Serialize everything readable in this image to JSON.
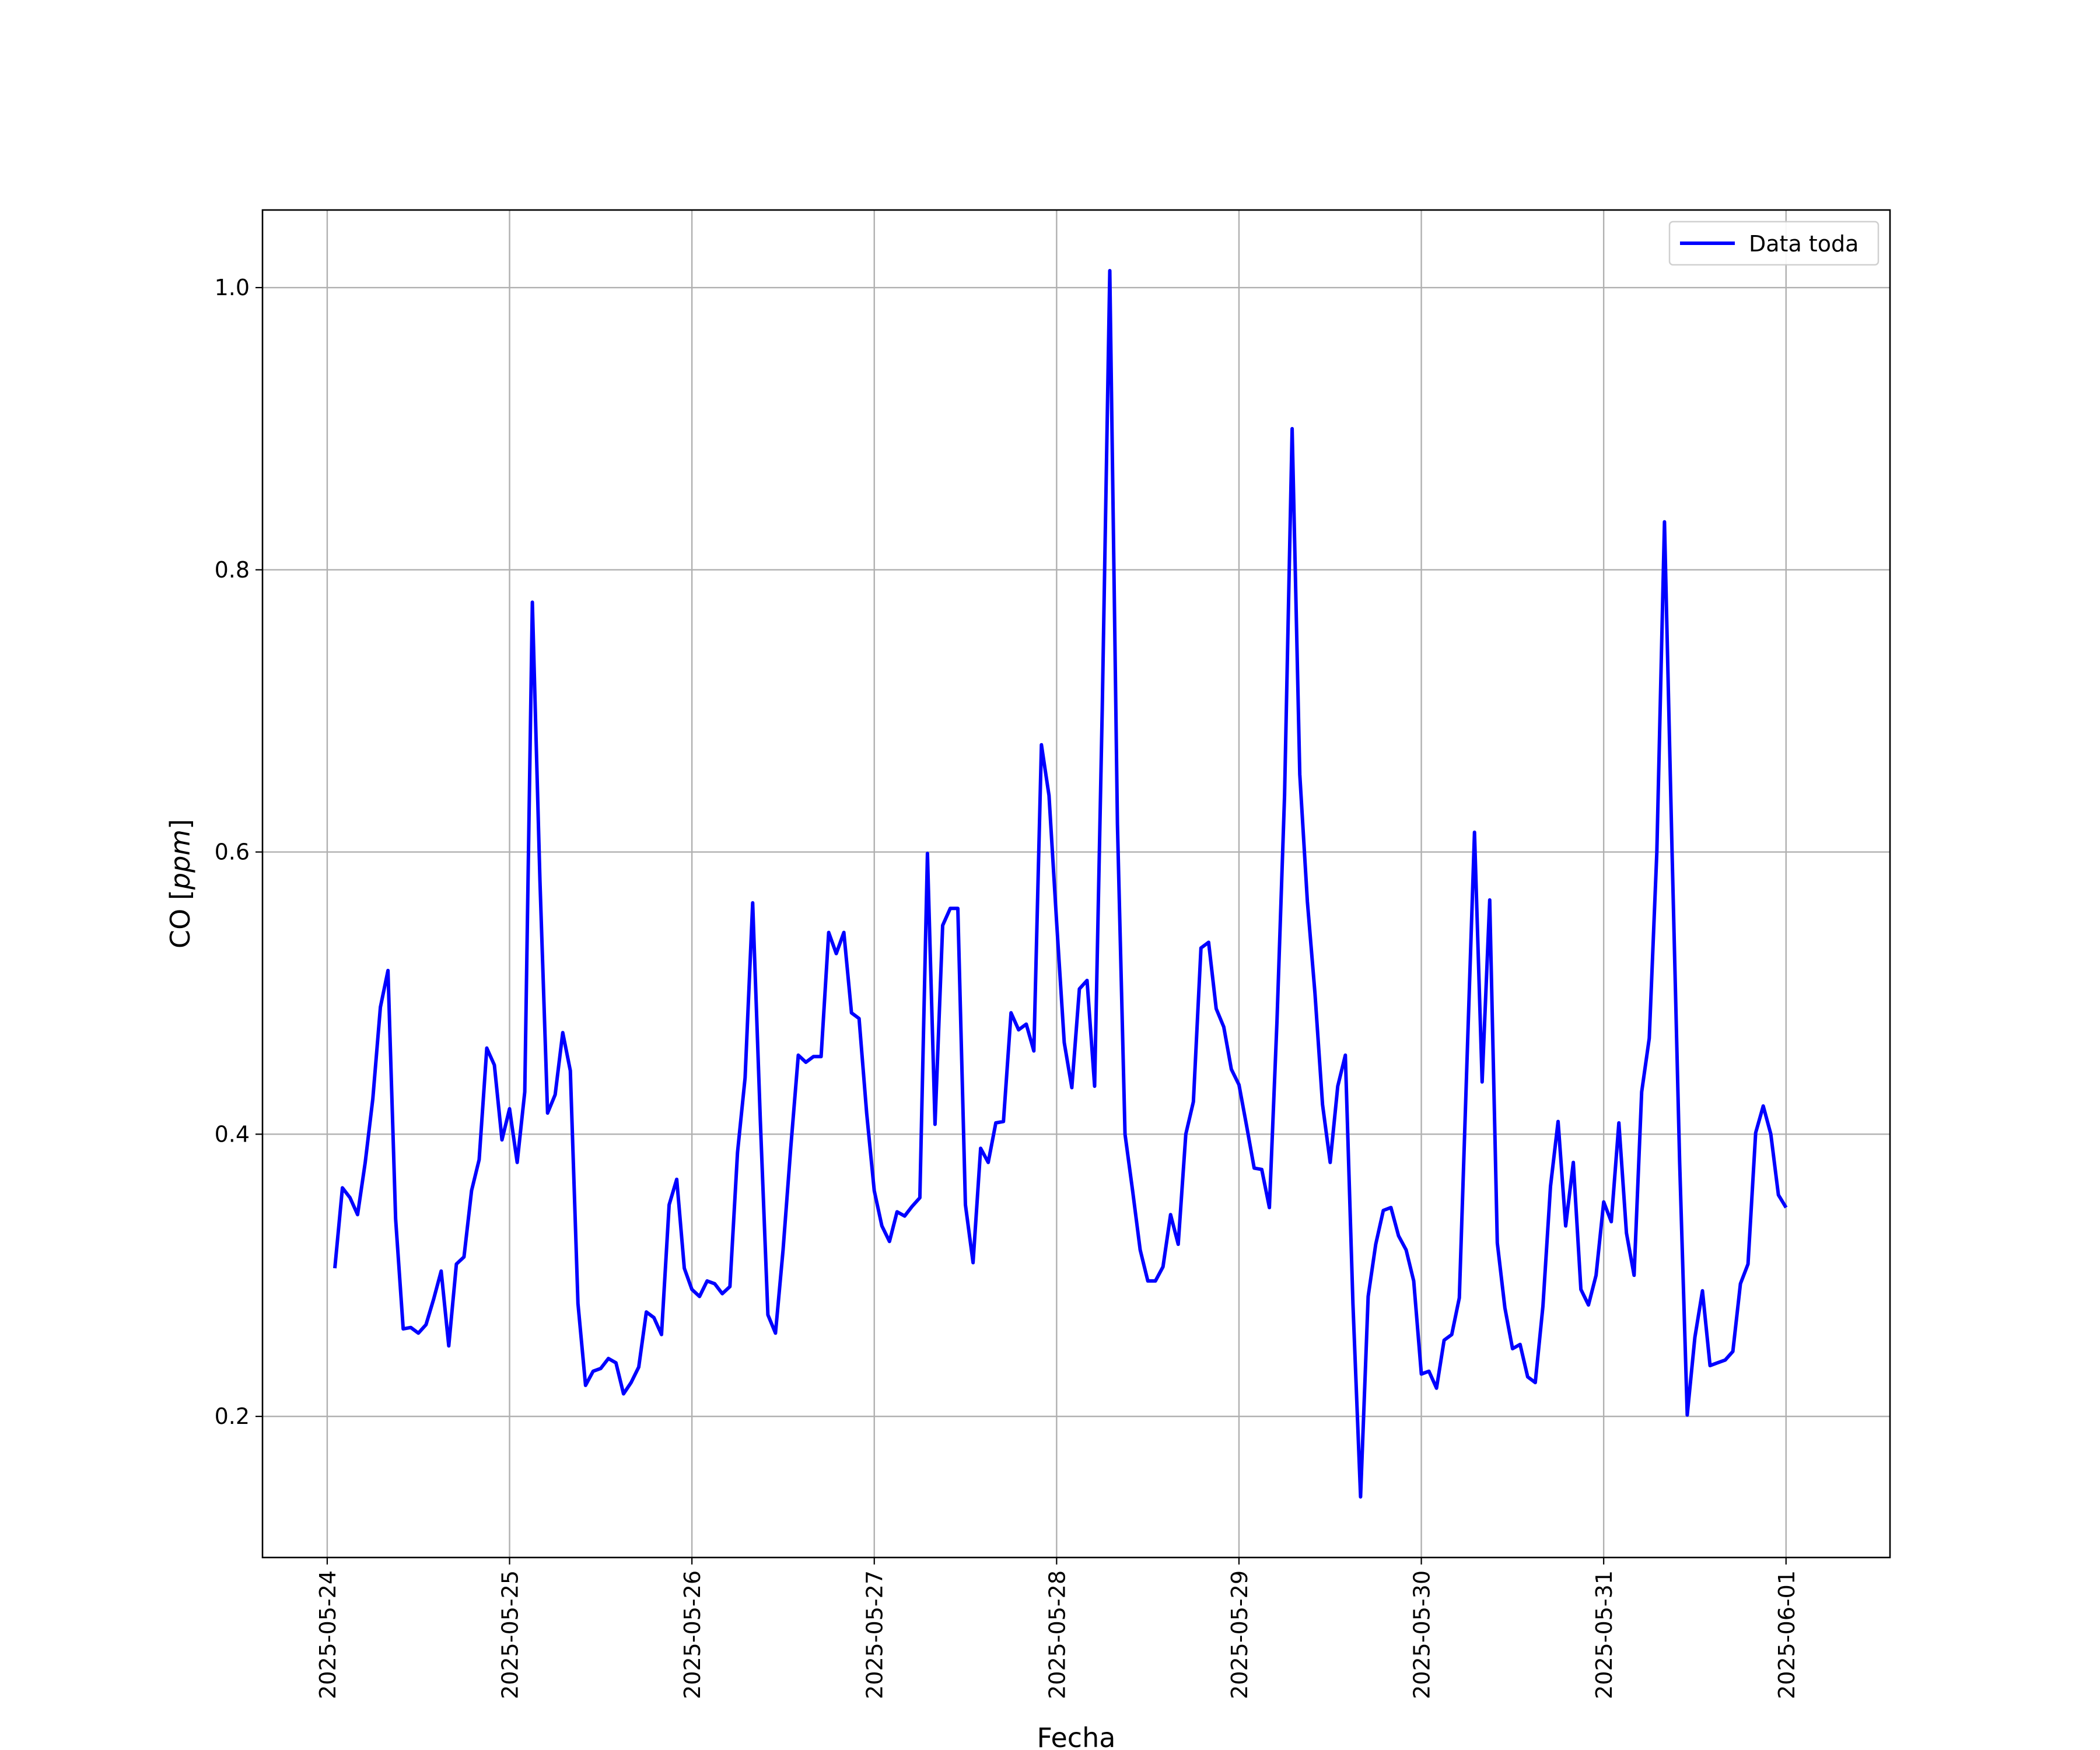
{
  "chart_data": {
    "type": "line",
    "title": "",
    "xlabel": "Fecha",
    "ylabel_prefix": "CO [",
    "ylabel_unit": "ppm",
    "ylabel_suffix": "]",
    "xlim": [
      "2025-05-23T15:29",
      "2025-06-01T13:41"
    ],
    "ylim": [
      0.1,
      1.055
    ],
    "grid": true,
    "legend_position": "top-right",
    "x_ticks": [
      "2025-05-24",
      "2025-05-25",
      "2025-05-26",
      "2025-05-27",
      "2025-05-28",
      "2025-05-29",
      "2025-05-30",
      "2025-05-31",
      "2025-06-01"
    ],
    "y_ticks": [
      {
        "value": 0.2,
        "label": "0.2"
      },
      {
        "value": 0.4,
        "label": "0.4"
      },
      {
        "value": 0.6,
        "label": "0.6"
      },
      {
        "value": 0.8,
        "label": "0.8"
      },
      {
        "value": 1.0,
        "label": "1.0"
      }
    ],
    "colors": {
      "line": "#0000ff",
      "grid": "#b0b0b0",
      "axes": "#000000"
    },
    "series": [
      {
        "name": "Data toda",
        "start": "2025-05-24T01:00",
        "step_hours": 1,
        "values": [
          0.305,
          0.362,
          0.355,
          0.343,
          0.38,
          0.425,
          0.49,
          0.516,
          0.34,
          0.262,
          0.263,
          0.259,
          0.265,
          0.283,
          0.303,
          0.25,
          0.308,
          0.313,
          0.36,
          0.382,
          0.461,
          0.449,
          0.396,
          0.418,
          0.38,
          0.43,
          0.777,
          0.58,
          0.415,
          0.428,
          0.472,
          0.445,
          0.28,
          0.222,
          0.232,
          0.234,
          0.241,
          0.238,
          0.216,
          0.224,
          0.235,
          0.274,
          0.27,
          0.258,
          0.35,
          0.368,
          0.305,
          0.29,
          0.285,
          0.296,
          0.294,
          0.287,
          0.292,
          0.387,
          0.44,
          0.564,
          0.41,
          0.272,
          0.259,
          0.318,
          0.39,
          0.456,
          0.451,
          0.455,
          0.455,
          0.543,
          0.528,
          0.543,
          0.486,
          0.482,
          0.415,
          0.36,
          0.335,
          0.324,
          0.345,
          0.342,
          0.349,
          0.355,
          0.599,
          0.407,
          0.548,
          0.56,
          0.56,
          0.35,
          0.309,
          0.39,
          0.38,
          0.408,
          0.409,
          0.486,
          0.474,
          0.478,
          0.459,
          0.676,
          0.64,
          0.55,
          0.465,
          0.433,
          0.503,
          0.509,
          0.434,
          0.7,
          1.012,
          0.62,
          0.4,
          0.36,
          0.318,
          0.296,
          0.296,
          0.306,
          0.343,
          0.322,
          0.4,
          0.423,
          0.532,
          0.536,
          0.489,
          0.476,
          0.446,
          0.435,
          0.406,
          0.376,
          0.375,
          0.348,
          0.48,
          0.64,
          0.9,
          0.655,
          0.565,
          0.5,
          0.421,
          0.38,
          0.434,
          0.456,
          0.28,
          0.143,
          0.285,
          0.322,
          0.346,
          0.348,
          0.328,
          0.318,
          0.296,
          0.23,
          0.232,
          0.22,
          0.254,
          0.258,
          0.284,
          0.45,
          0.614,
          0.437,
          0.566,
          0.323,
          0.277,
          0.248,
          0.251,
          0.228,
          0.224,
          0.278,
          0.363,
          0.409,
          0.335,
          0.38,
          0.29,
          0.279,
          0.3,
          0.352,
          0.338,
          0.408,
          0.33,
          0.3,
          0.43,
          0.468,
          0.6,
          0.834,
          0.6,
          0.38,
          0.201,
          0.256,
          0.289,
          0.236,
          0.238,
          0.24,
          0.246,
          0.294,
          0.308,
          0.401,
          0.42,
          0.4,
          0.357,
          0.348
        ]
      }
    ]
  }
}
